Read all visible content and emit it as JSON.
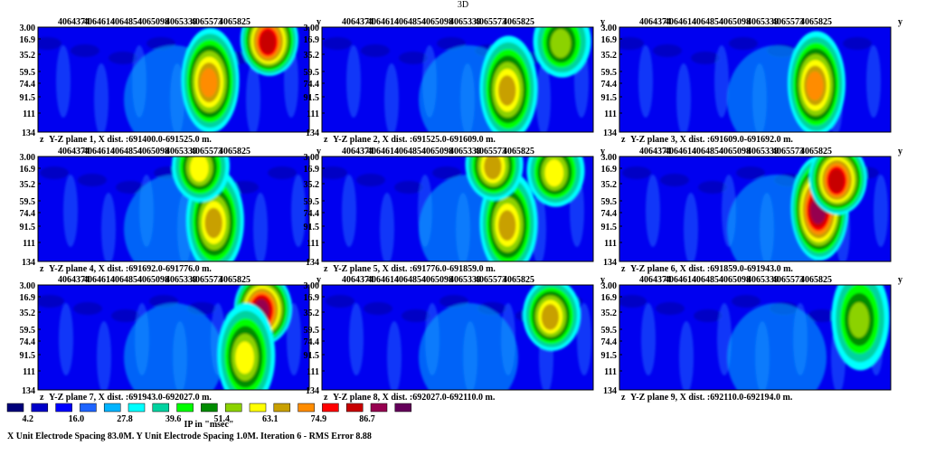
{
  "title": "3D",
  "chart_data": {
    "type": "heatmap",
    "y_axis_label": "y",
    "z_axis_label": "z",
    "y_ticks": [
      "4064374",
      "4064614",
      "4064854",
      "4065098",
      "4065339",
      "4065573",
      "4065825"
    ],
    "depth_ticks": [
      "3.00",
      "16.9",
      "35.2",
      "59.5",
      "74.4",
      "91.5",
      "111",
      "134"
    ],
    "panels": [
      {
        "caption": "Y-Z plane 1, X dist. :691400.0-691525.0 m.",
        "anomalies": [
          {
            "y": 4065330,
            "z": 68,
            "value": 70
          },
          {
            "y": 4065700,
            "z": 16,
            "value": 78
          }
        ]
      },
      {
        "caption": "Y-Z plane 2, X dist. :691525.0-691609.0 m.",
        "anomalies": [
          {
            "y": 4065420,
            "z": 78,
            "value": 66
          },
          {
            "y": 4065755,
            "z": 18,
            "value": 50
          }
        ]
      },
      {
        "caption": "Y-Z plane 3, X dist. :691609.0-691692.0 m.",
        "anomalies": [
          {
            "y": 4065485,
            "z": 72,
            "value": 68
          }
        ]
      },
      {
        "caption": "Y-Z plane 4, X dist. :691692.0-691776.0 m.",
        "anomalies": [
          {
            "y": 4065360,
            "z": 82,
            "value": 64
          },
          {
            "y": 4065270,
            "z": 12,
            "value": 60
          }
        ]
      },
      {
        "caption": "Y-Z plane 5, X dist. :691776.0-691859.0 m.",
        "anomalies": [
          {
            "y": 4065420,
            "z": 85,
            "value": 64
          },
          {
            "y": 4065330,
            "z": 10,
            "value": 66
          },
          {
            "y": 4065715,
            "z": 18,
            "value": 58
          }
        ]
      },
      {
        "caption": "Y-Z plane 6, X dist. :691859.0-691943.0 m.",
        "anomalies": [
          {
            "y": 4065505,
            "z": 66,
            "value": 84
          },
          {
            "y": 4065620,
            "z": 28,
            "value": 80
          }
        ]
      },
      {
        "caption": "Y-Z plane 7, X dist. :691943.0-692027.0 m.",
        "anomalies": [
          {
            "y": 4065660,
            "z": 30,
            "value": 84
          },
          {
            "y": 4065555,
            "z": 90,
            "value": 60
          }
        ]
      },
      {
        "caption": "Y-Z plane 8, X dist. :692027.0-692110.0 m.",
        "anomalies": [
          {
            "y": 4065690,
            "z": 38,
            "value": 64
          }
        ]
      },
      {
        "caption": "Y-Z plane 9, X dist. :692110.0-692194.0 m.",
        "anomalies": [
          {
            "y": 4065760,
            "z": 42,
            "value": 50
          }
        ]
      }
    ],
    "legend": {
      "colors": [
        "#00007a",
        "#0000c8",
        "#0000ff",
        "#1e64ff",
        "#00b4ff",
        "#00ffff",
        "#00d2a0",
        "#00ff00",
        "#008c00",
        "#8cd200",
        "#ffff00",
        "#c8a000",
        "#ff8c00",
        "#ff0000",
        "#c80000",
        "#960050",
        "#64005a"
      ],
      "labels": [
        "4.2",
        "16.0",
        "27.8",
        "39.6",
        "51.4",
        "63.1",
        "74.9",
        "86.7"
      ],
      "unit": "IP in \"msec\""
    }
  },
  "footer": "X Unit Electrode Spacing 83.0M.  Y Unit Electrode Spacing 1.0M.   Iteration 6 - RMS Error 8.88"
}
